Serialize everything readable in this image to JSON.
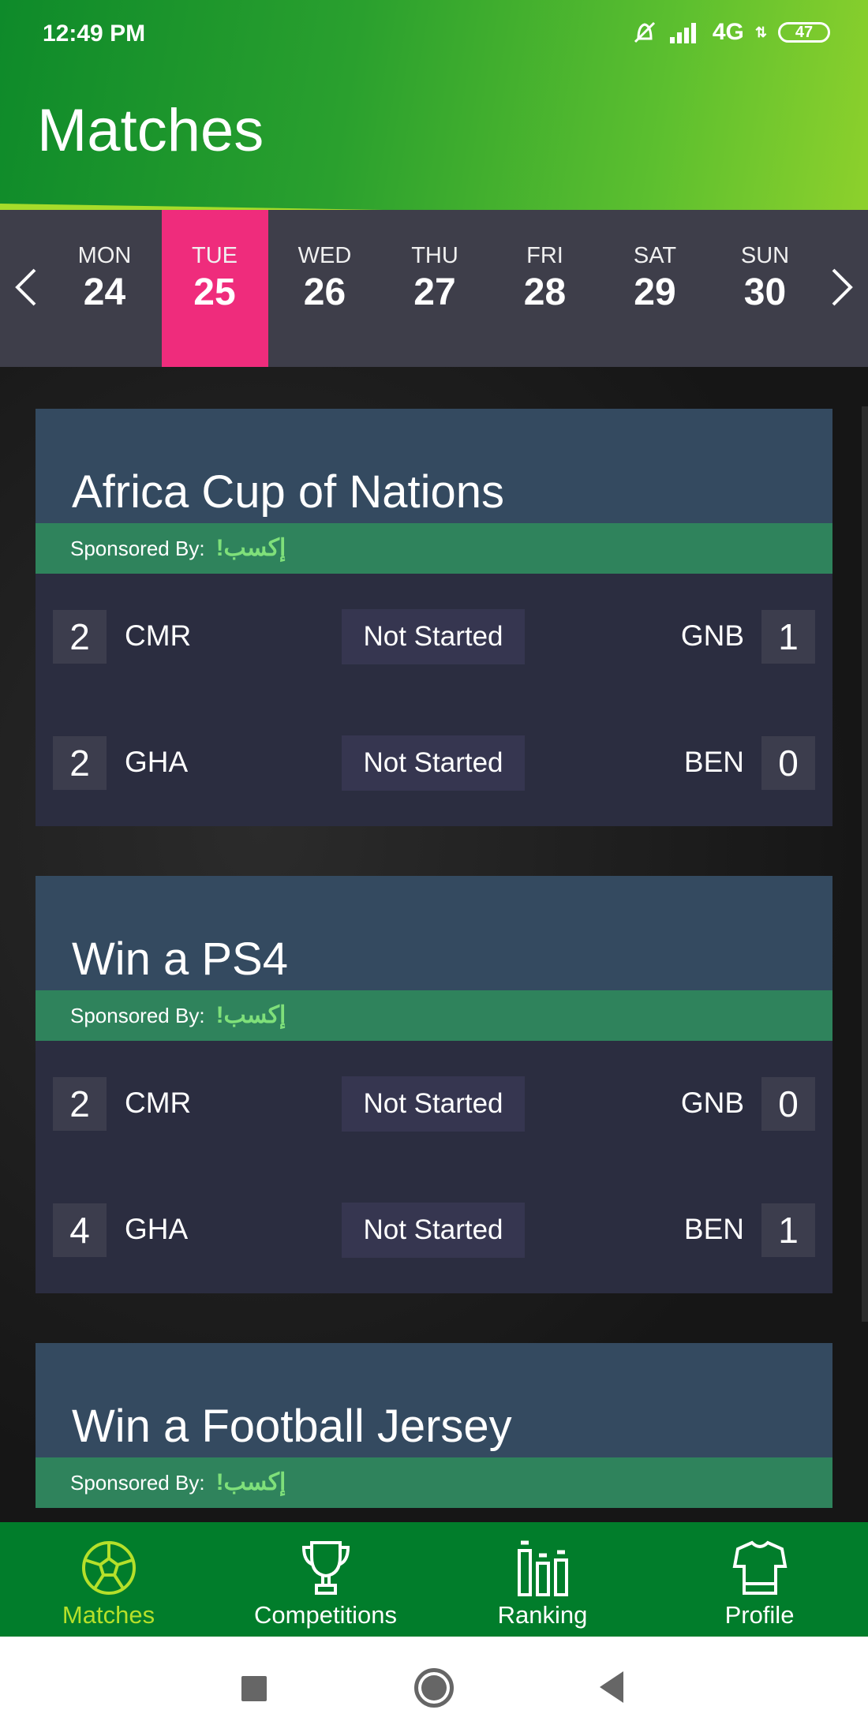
{
  "status_bar": {
    "time": "12:49 PM",
    "network": "4G",
    "battery": "47",
    "icons": [
      "bell-off-icon",
      "signal-icon"
    ]
  },
  "header": {
    "title": "Matches"
  },
  "days": [
    {
      "name": "MON",
      "date": "24",
      "selected": false
    },
    {
      "name": "TUE",
      "date": "25",
      "selected": true
    },
    {
      "name": "WED",
      "date": "26",
      "selected": false
    },
    {
      "name": "THU",
      "date": "27",
      "selected": false
    },
    {
      "name": "FRI",
      "date": "28",
      "selected": false
    },
    {
      "name": "SAT",
      "date": "29",
      "selected": false
    },
    {
      "name": "SUN",
      "date": "30",
      "selected": false
    }
  ],
  "competitions": [
    {
      "title": "Africa Cup of Nations",
      "sponsor_label": "Sponsored By:",
      "sponsor_logo": "إكسب!",
      "matches": [
        {
          "home_score": "2",
          "home": "CMR",
          "status": "Not Started",
          "away": "GNB",
          "away_score": "1"
        },
        {
          "home_score": "2",
          "home": "GHA",
          "status": "Not Started",
          "away": "BEN",
          "away_score": "0"
        }
      ]
    },
    {
      "title": "Win a PS4",
      "sponsor_label": "Sponsored By:",
      "sponsor_logo": "إكسب!",
      "matches": [
        {
          "home_score": "2",
          "home": "CMR",
          "status": "Not Started",
          "away": "GNB",
          "away_score": "0"
        },
        {
          "home_score": "4",
          "home": "GHA",
          "status": "Not Started",
          "away": "BEN",
          "away_score": "1"
        }
      ]
    },
    {
      "title": "Win a Football Jersey",
      "sponsor_label": "Sponsored By:",
      "sponsor_logo": "إكسب!",
      "matches": []
    }
  ],
  "nav": [
    {
      "label": "Matches",
      "icon": "soccer-ball-icon",
      "active": true
    },
    {
      "label": "Competitions",
      "icon": "trophy-icon",
      "active": false
    },
    {
      "label": "Ranking",
      "icon": "ranking-bars-icon",
      "active": false
    },
    {
      "label": "Profile",
      "icon": "jersey-icon",
      "active": false
    }
  ],
  "colors": {
    "selected_day": "#ef2c7c",
    "active_nav": "#b5e02a",
    "nav_bg": "#017d2b",
    "sponsor_bg": "#2f835c"
  }
}
